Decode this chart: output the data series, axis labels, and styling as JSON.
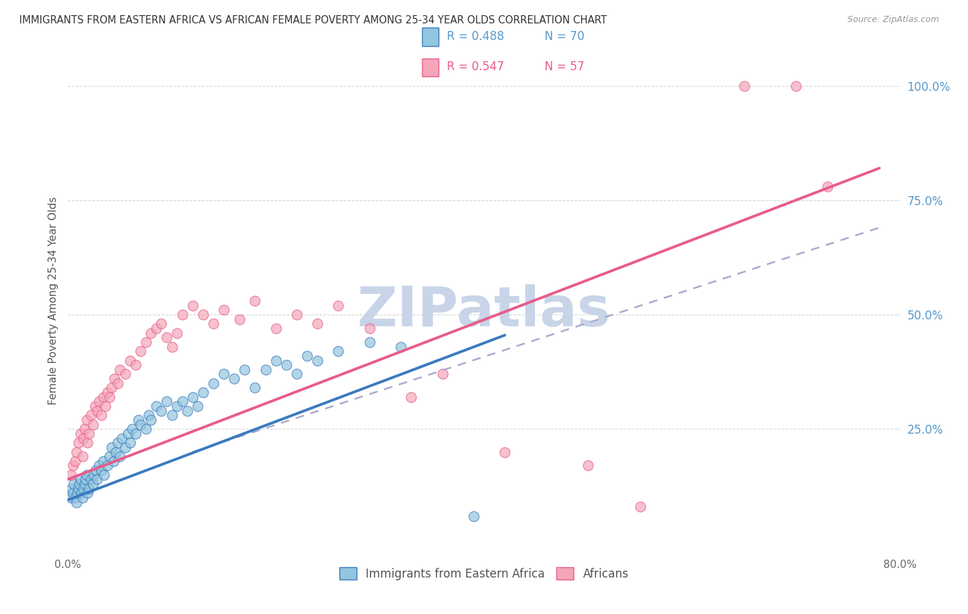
{
  "title": "IMMIGRANTS FROM EASTERN AFRICA VS AFRICAN FEMALE POVERTY AMONG 25-34 YEAR OLDS CORRELATION CHART",
  "source": "Source: ZipAtlas.com",
  "ylabel": "Female Poverty Among 25-34 Year Olds",
  "ytick_labels": [
    "100.0%",
    "75.0%",
    "50.0%",
    "25.0%"
  ],
  "ytick_values": [
    1.0,
    0.75,
    0.5,
    0.25
  ],
  "xlim": [
    0.0,
    0.8
  ],
  "ylim": [
    -0.02,
    1.08
  ],
  "legend_r1": "R = 0.488",
  "legend_n1": "N = 70",
  "legend_r2": "R = 0.547",
  "legend_n2": "N = 57",
  "legend_label1": "Immigrants from Eastern Africa",
  "legend_label2": "Africans",
  "color_blue": "#92c5de",
  "color_pink": "#f4a6b8",
  "color_blue_line": "#3a7abf",
  "color_pink_line": "#e85c8a",
  "color_dashed": "#aaaacc",
  "background_color": "#ffffff",
  "grid_color": "#cccccc",
  "watermark": "ZIPatlas",
  "watermark_color": "#c8d4e8",
  "blue_line_x": [
    0.0,
    0.42
  ],
  "blue_line_y": [
    0.095,
    0.455
  ],
  "pink_line_x": [
    0.0,
    0.78
  ],
  "pink_line_y": [
    0.14,
    0.82
  ],
  "dashed_line_x": [
    0.12,
    0.78
  ],
  "dashed_line_y": [
    0.2,
    0.69
  ],
  "blue_scatter_x": [
    0.003,
    0.004,
    0.005,
    0.006,
    0.007,
    0.008,
    0.009,
    0.01,
    0.011,
    0.012,
    0.013,
    0.014,
    0.015,
    0.016,
    0.017,
    0.018,
    0.019,
    0.02,
    0.022,
    0.024,
    0.025,
    0.027,
    0.028,
    0.03,
    0.032,
    0.034,
    0.035,
    0.038,
    0.04,
    0.042,
    0.044,
    0.046,
    0.048,
    0.05,
    0.052,
    0.055,
    0.058,
    0.06,
    0.062,
    0.065,
    0.068,
    0.07,
    0.075,
    0.078,
    0.08,
    0.085,
    0.09,
    0.095,
    0.1,
    0.105,
    0.11,
    0.115,
    0.12,
    0.125,
    0.13,
    0.14,
    0.15,
    0.16,
    0.17,
    0.18,
    0.19,
    0.2,
    0.21,
    0.22,
    0.23,
    0.24,
    0.26,
    0.29,
    0.32,
    0.39
  ],
  "blue_scatter_y": [
    0.1,
    0.12,
    0.11,
    0.13,
    0.1,
    0.09,
    0.11,
    0.12,
    0.13,
    0.14,
    0.11,
    0.1,
    0.12,
    0.13,
    0.14,
    0.15,
    0.11,
    0.12,
    0.14,
    0.13,
    0.15,
    0.16,
    0.14,
    0.17,
    0.16,
    0.18,
    0.15,
    0.17,
    0.19,
    0.21,
    0.18,
    0.2,
    0.22,
    0.19,
    0.23,
    0.21,
    0.24,
    0.22,
    0.25,
    0.24,
    0.27,
    0.26,
    0.25,
    0.28,
    0.27,
    0.3,
    0.29,
    0.31,
    0.28,
    0.3,
    0.31,
    0.29,
    0.32,
    0.3,
    0.33,
    0.35,
    0.37,
    0.36,
    0.38,
    0.34,
    0.38,
    0.4,
    0.39,
    0.37,
    0.41,
    0.4,
    0.42,
    0.44,
    0.43,
    0.06
  ],
  "pink_scatter_x": [
    0.003,
    0.005,
    0.007,
    0.008,
    0.01,
    0.012,
    0.014,
    0.015,
    0.016,
    0.018,
    0.019,
    0.02,
    0.022,
    0.024,
    0.026,
    0.028,
    0.03,
    0.032,
    0.034,
    0.036,
    0.038,
    0.04,
    0.042,
    0.045,
    0.048,
    0.05,
    0.055,
    0.06,
    0.065,
    0.07,
    0.075,
    0.08,
    0.085,
    0.09,
    0.095,
    0.1,
    0.105,
    0.11,
    0.12,
    0.13,
    0.14,
    0.15,
    0.165,
    0.18,
    0.2,
    0.22,
    0.24,
    0.26,
    0.29,
    0.33,
    0.36,
    0.42,
    0.5,
    0.55,
    0.65,
    0.7,
    0.73
  ],
  "pink_scatter_y": [
    0.15,
    0.17,
    0.18,
    0.2,
    0.22,
    0.24,
    0.19,
    0.23,
    0.25,
    0.27,
    0.22,
    0.24,
    0.28,
    0.26,
    0.3,
    0.29,
    0.31,
    0.28,
    0.32,
    0.3,
    0.33,
    0.32,
    0.34,
    0.36,
    0.35,
    0.38,
    0.37,
    0.4,
    0.39,
    0.42,
    0.44,
    0.46,
    0.47,
    0.48,
    0.45,
    0.43,
    0.46,
    0.5,
    0.52,
    0.5,
    0.48,
    0.51,
    0.49,
    0.53,
    0.47,
    0.5,
    0.48,
    0.52,
    0.47,
    0.32,
    0.37,
    0.2,
    0.17,
    0.08,
    1.0,
    1.0,
    0.78
  ]
}
